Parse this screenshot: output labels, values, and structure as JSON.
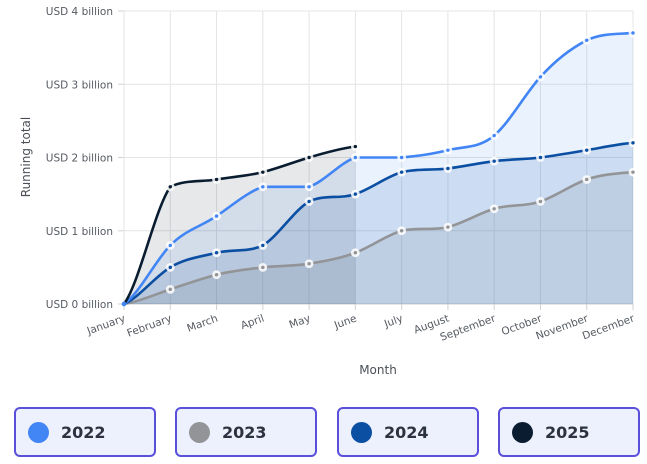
{
  "chart_data": {
    "type": "area",
    "title": "",
    "xlabel": "Month",
    "ylabel": "Running total",
    "ylim": [
      0,
      4000000000
    ],
    "yticks": [
      {
        "value": 0,
        "label": "USD 0 billion"
      },
      {
        "value": 1,
        "label": "USD 1 billion"
      },
      {
        "value": 2,
        "label": "USD 2 billion"
      },
      {
        "value": 3,
        "label": "USD 3 billion"
      },
      {
        "value": 4,
        "label": "USD 4 billion"
      }
    ],
    "categories": [
      "January",
      "February",
      "March",
      "April",
      "May",
      "June",
      "July",
      "August",
      "September",
      "October",
      "November",
      "December"
    ],
    "grid": true,
    "legend_position": "bottom",
    "value_unit": "USD billion",
    "series": [
      {
        "name": "2022",
        "color": "#4285f4",
        "values": [
          0,
          0.8,
          1.2,
          1.6,
          1.6,
          2.0,
          2.0,
          2.1,
          2.3,
          3.1,
          3.6,
          3.7
        ]
      },
      {
        "name": "2023",
        "color": "#929497",
        "values": [
          0,
          0.2,
          0.4,
          0.5,
          0.55,
          0.7,
          1.0,
          1.05,
          1.3,
          1.4,
          1.7,
          1.8
        ]
      },
      {
        "name": "2024",
        "color": "#0b4fa3",
        "values": [
          0,
          0.5,
          0.7,
          0.8,
          1.4,
          1.5,
          1.8,
          1.85,
          1.95,
          2.0,
          2.1,
          2.2
        ]
      },
      {
        "name": "2025",
        "color": "#0a1d30",
        "values": [
          0,
          1.6,
          1.7,
          1.8,
          2.0,
          2.15
        ]
      }
    ]
  },
  "legend": {
    "items": [
      {
        "label": "2022",
        "color": "#4285f4"
      },
      {
        "label": "2023",
        "color": "#929497"
      },
      {
        "label": "2024",
        "color": "#0b4fa3"
      },
      {
        "label": "2025",
        "color": "#0a1d30"
      }
    ]
  }
}
